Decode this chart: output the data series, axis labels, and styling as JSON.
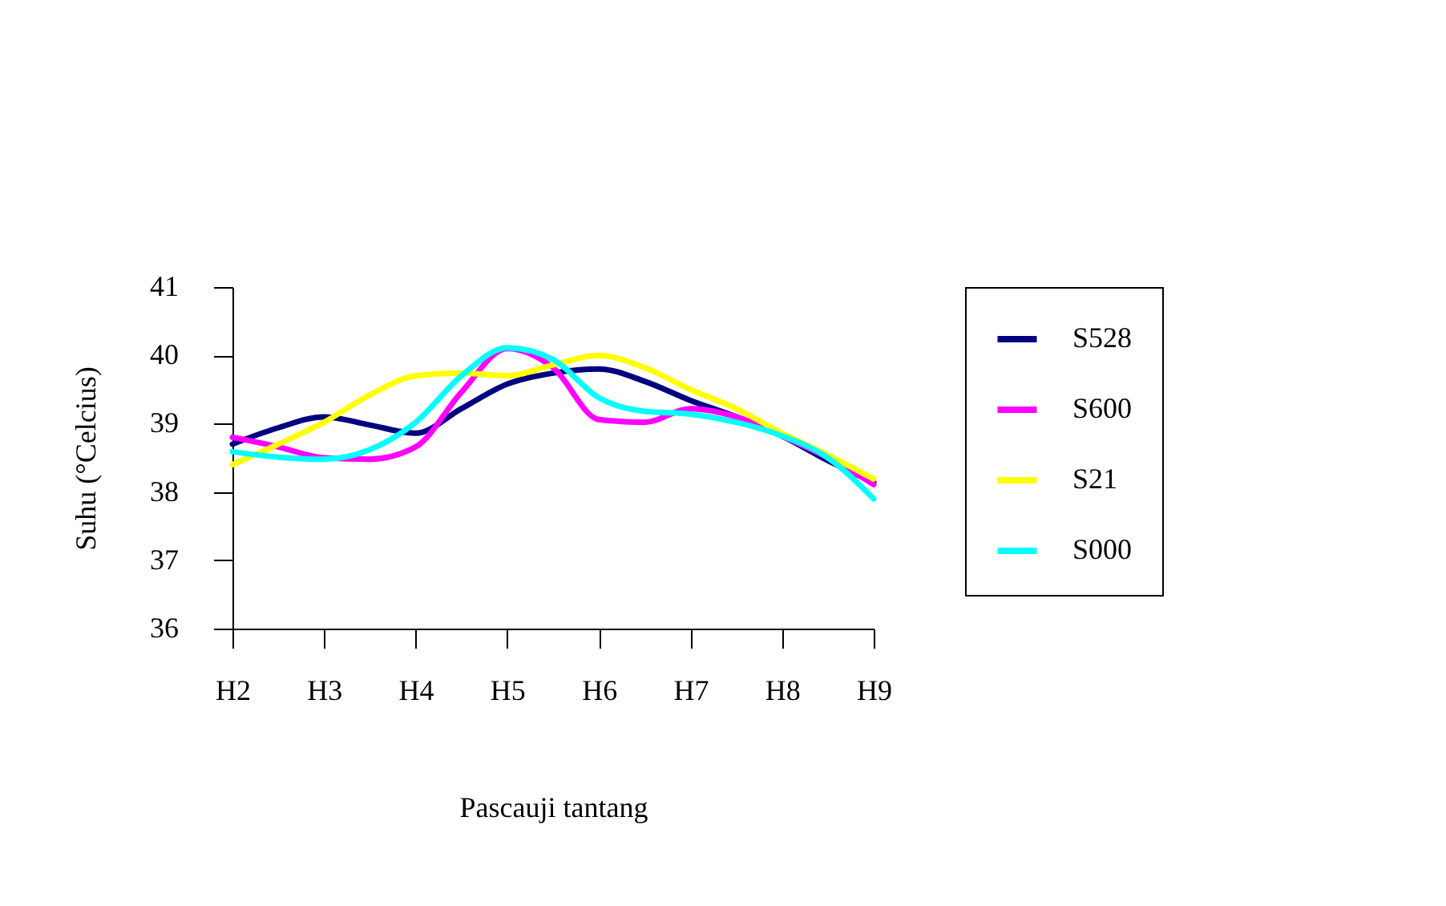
{
  "chart_data": {
    "type": "line",
    "xlabel": "Pascauji tantang",
    "ylabel": "Suhu (°Celcius)",
    "categories": [
      "H2",
      null,
      "H3",
      null,
      "H4",
      null,
      "H5",
      null,
      "H6",
      null,
      "H7",
      null,
      "H8",
      null,
      "H9"
    ],
    "ylim": [
      36,
      41
    ],
    "yticks": [
      36,
      37,
      38,
      39,
      40,
      41
    ],
    "series": [
      {
        "name": "S528",
        "color": "#000080",
        "values": [
          38.7,
          38.94,
          39.1,
          38.98,
          38.86,
          39.22,
          39.58,
          39.74,
          39.8,
          39.62,
          39.34,
          39.1,
          38.82,
          38.46,
          38.14
        ]
      },
      {
        "name": "S600",
        "color": "#ff00ff",
        "values": [
          38.8,
          38.66,
          38.5,
          38.48,
          38.66,
          39.46,
          40.1,
          39.82,
          39.06,
          39.02,
          39.22,
          39.1,
          38.82,
          38.5,
          38.11
        ]
      },
      {
        "name": "S21",
        "color": "#ffff00",
        "values": [
          38.4,
          38.7,
          39.02,
          39.42,
          39.7,
          39.74,
          39.7,
          39.86,
          40.0,
          39.82,
          39.5,
          39.22,
          38.86,
          38.54,
          38.19
        ]
      },
      {
        "name": "S000",
        "color": "#00ffff",
        "values": [
          38.59,
          38.51,
          38.48,
          38.62,
          39.02,
          39.7,
          40.11,
          39.94,
          39.38,
          39.18,
          39.14,
          39.02,
          38.82,
          38.5,
          37.9
        ]
      }
    ],
    "grid": false,
    "legend": "right",
    "line_style": "solid",
    "marker": "none"
  }
}
